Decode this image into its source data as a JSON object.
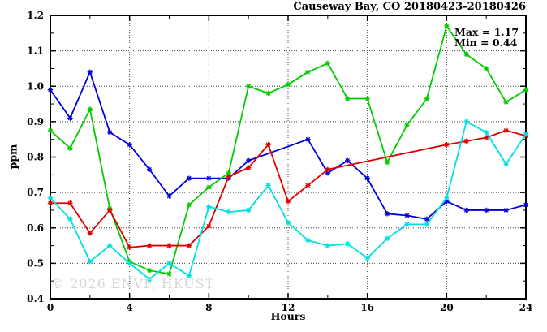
{
  "title": "Causeway Bay, CO 20180423-20180426",
  "annotation": {
    "max_label": "Max = 1.17",
    "min_label": "Min = 0.44"
  },
  "watermark": "© 2026 ENVF, HKUST",
  "chart_data": {
    "type": "line",
    "title": "Causeway Bay, CO 20180423-20180426",
    "xlabel": "Hours",
    "ylabel": "ppm",
    "xlim": [
      0,
      24
    ],
    "ylim": [
      0.4,
      1.2
    ],
    "x_ticks": [
      0,
      4,
      8,
      12,
      16,
      20,
      24
    ],
    "x_tick_labels": [
      "0",
      "4",
      "8",
      "12",
      "16",
      "20",
      "24"
    ],
    "x_minor_ticks": [
      2,
      6,
      10,
      14,
      18,
      22
    ],
    "y_ticks": [
      0.4,
      0.5,
      0.6,
      0.7,
      0.8,
      0.9,
      1.0,
      1.1,
      1.2
    ],
    "y_tick_labels": [
      "0.4",
      "0.5",
      "0.6",
      "0.7",
      "0.8",
      "0.9",
      "1.0",
      "1.1",
      "1.2"
    ],
    "y_minor_step": 0.05,
    "grid": true,
    "grid_color": "#444444",
    "stat_max": 1.17,
    "stat_min": 0.44,
    "x": [
      0,
      1,
      2,
      3,
      4,
      5,
      6,
      7,
      8,
      9,
      10,
      11,
      12,
      13,
      14,
      15,
      16,
      17,
      18,
      19,
      20,
      21,
      22,
      23,
      24
    ],
    "series": [
      {
        "name": "blue-line",
        "color": "#0000dd",
        "values": [
          0.99,
          0.91,
          1.04,
          0.87,
          0.835,
          0.765,
          0.69,
          0.74,
          0.74,
          0.74,
          0.79,
          null,
          null,
          0.85,
          0.755,
          0.79,
          0.74,
          0.64,
          0.635,
          0.625,
          0.675,
          0.65,
          0.65,
          0.65,
          0.665
        ]
      },
      {
        "name": "green-line",
        "color": "#00cc00",
        "values": [
          0.875,
          0.825,
          0.935,
          0.655,
          0.505,
          0.48,
          0.47,
          0.665,
          0.715,
          0.755,
          1.0,
          0.98,
          1.005,
          1.04,
          1.065,
          0.965,
          0.965,
          0.785,
          0.89,
          0.965,
          1.17,
          1.09,
          1.05,
          0.955,
          0.99
        ]
      },
      {
        "name": "red-line",
        "color": "#dd0000",
        "values": [
          0.67,
          0.67,
          0.585,
          0.65,
          0.545,
          0.55,
          0.55,
          0.55,
          0.605,
          0.745,
          0.77,
          0.835,
          0.675,
          0.72,
          0.765,
          null,
          null,
          null,
          null,
          null,
          0.835,
          0.845,
          0.855,
          0.875,
          0.86
        ]
      },
      {
        "name": "cyan-line",
        "color": "#00e0e0",
        "values": [
          0.685,
          0.625,
          0.505,
          0.55,
          0.5,
          0.455,
          0.5,
          0.465,
          0.66,
          0.645,
          0.65,
          0.72,
          0.615,
          0.565,
          0.55,
          0.555,
          0.515,
          0.57,
          0.61,
          0.61,
          0.685,
          0.9,
          0.87,
          0.78,
          0.865
        ]
      }
    ]
  }
}
